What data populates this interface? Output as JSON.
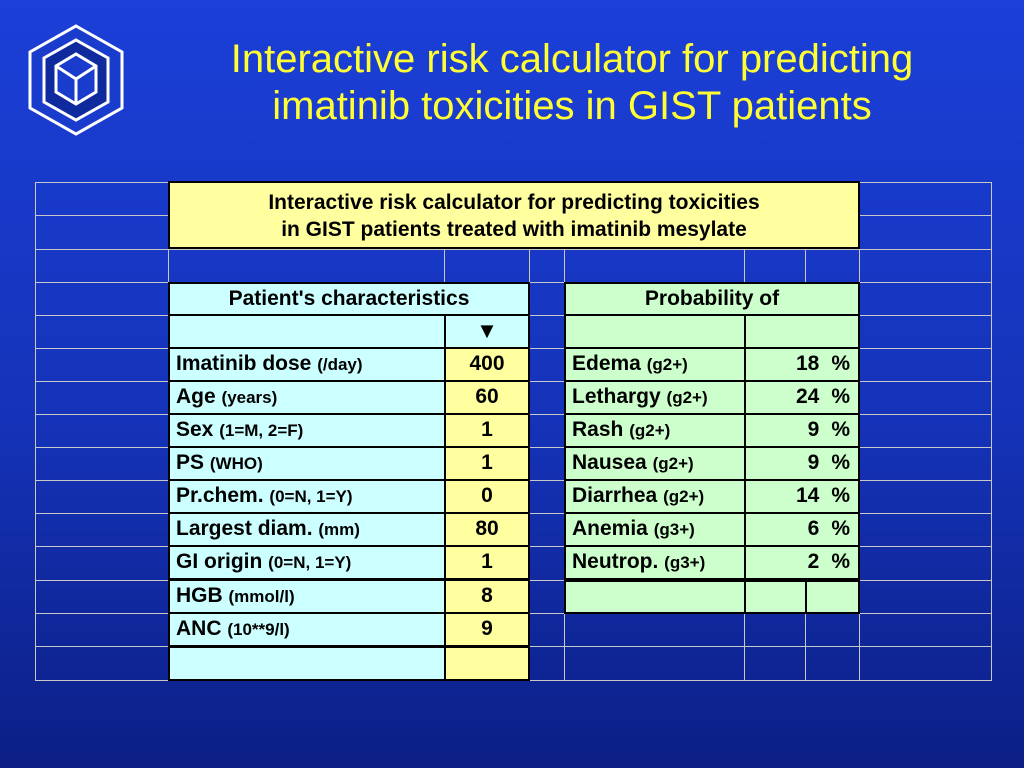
{
  "title": {
    "line1": "Interactive risk calculator for predicting",
    "line2": "imatinib toxicities in GIST patients"
  },
  "table": {
    "header_line1": "Interactive risk calculator for predicting toxicities",
    "header_line2": "in GIST patients treated with imatinib mesylate",
    "characteristics_header": "Patient's characteristics",
    "dropdown_arrow": "▼",
    "probability_header": "Probability of",
    "characteristics": [
      {
        "label": "Imatinib dose",
        "unit": "(/day)",
        "value": "400"
      },
      {
        "label": "Age",
        "unit": "(years)",
        "value": "60"
      },
      {
        "label": "Sex",
        "unit": "(1=M, 2=F)",
        "value": "1"
      },
      {
        "label": "PS",
        "unit": "(WHO)",
        "value": "1"
      },
      {
        "label": "Pr.chem.",
        "unit": "(0=N, 1=Y)",
        "value": "0"
      },
      {
        "label": "Largest diam.",
        "unit": "(mm)",
        "value": "80"
      },
      {
        "label": "GI origin",
        "unit": "(0=N, 1=Y)",
        "value": "1"
      },
      {
        "label": "HGB",
        "unit": "(mmol/l)",
        "value": "8"
      },
      {
        "label": "ANC",
        "unit": "(10**9/l)",
        "value": "9"
      }
    ],
    "probabilities": [
      {
        "label": "Edema",
        "grade": "(g2+)",
        "value": "18",
        "sign": "%"
      },
      {
        "label": "Lethargy",
        "grade": "(g2+)",
        "value": "24",
        "sign": "%"
      },
      {
        "label": "Rash",
        "grade": "(g2+)",
        "value": "9",
        "sign": "%"
      },
      {
        "label": "Nausea",
        "grade": "(g2+)",
        "value": "9",
        "sign": "%"
      },
      {
        "label": "Diarrhea",
        "grade": "(g2+)",
        "value": "14",
        "sign": "%"
      },
      {
        "label": "Anemia",
        "grade": "(g3+)",
        "value": "6",
        "sign": "%"
      },
      {
        "label": "Neutrop.",
        "grade": "(g3+)",
        "value": "2",
        "sign": "%"
      }
    ]
  },
  "colors": {
    "title": "#ffff33",
    "header_fill": "#ffffa0",
    "input_fill": "#ccffff",
    "output_fill": "#ccffcc"
  },
  "icons": {
    "logo": "institution-logo-icon"
  }
}
